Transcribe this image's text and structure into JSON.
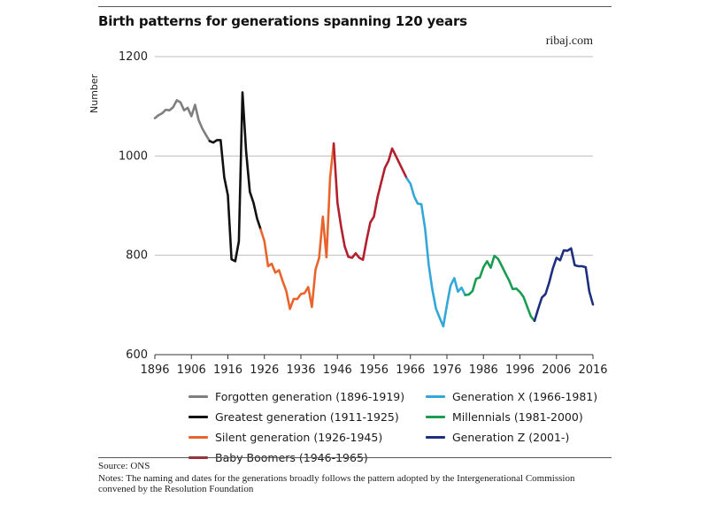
{
  "title": "Birth patterns for generations spanning 120 years",
  "site": "ribaj.com",
  "source": "Source: ONS",
  "notes": "Notes: The naming and dates for the generations broadly follows the pattern adopted by the Intergenerational Commission convened by the Resolution Foundation",
  "chart_data": {
    "type": "line",
    "ylabel": "Number",
    "xlabel": "",
    "xlim": [
      1896,
      2016
    ],
    "ylim": [
      600,
      1200
    ],
    "x_ticks": [
      1896,
      1906,
      1916,
      1926,
      1936,
      1946,
      1956,
      1966,
      1976,
      1986,
      1996,
      2006,
      2016
    ],
    "y_ticks": [
      600,
      800,
      1000,
      1200
    ],
    "grid": "horizontal",
    "legend_position": "bottom",
    "series": [
      {
        "name": "Forgotten generation (1896-1919)",
        "color": "#7f7f7f",
        "x": [
          1896,
          1897,
          1898,
          1899,
          1900,
          1901,
          1902,
          1903,
          1904,
          1905,
          1906,
          1907,
          1908,
          1909,
          1910,
          1911
        ],
        "y": [
          1076,
          1082,
          1086,
          1093,
          1092,
          1098,
          1112,
          1108,
          1092,
          1097,
          1080,
          1103,
          1072,
          1055,
          1042,
          1030
        ]
      },
      {
        "name": "Greatest generation (1911-1925)",
        "color": "#111111",
        "x": [
          1911,
          1912,
          1913,
          1914,
          1915,
          1916,
          1917,
          1918,
          1919,
          1920,
          1921,
          1922,
          1923,
          1924,
          1925
        ],
        "y": [
          1030,
          1027,
          1032,
          1032,
          957,
          921,
          792,
          788,
          828,
          1128,
          1009,
          928,
          906,
          874,
          852
        ]
      },
      {
        "name": "Silent generation (1926-1945)",
        "color": "#e8642c",
        "x": [
          1925,
          1926,
          1927,
          1928,
          1929,
          1930,
          1931,
          1932,
          1933,
          1934,
          1935,
          1936,
          1937,
          1938,
          1939,
          1940,
          1941,
          1942,
          1943,
          1944,
          1945
        ],
        "y": [
          852,
          828,
          778,
          783,
          765,
          770,
          748,
          728,
          692,
          712,
          712,
          722,
          724,
          736,
          696,
          771,
          795,
          878,
          796,
          956,
          1025
        ]
      },
      {
        "name": "Baby Boomers (1946-1965)",
        "color": "#b0202e",
        "x": [
          1945,
          1946,
          1947,
          1948,
          1949,
          1950,
          1951,
          1952,
          1953,
          1954,
          1955,
          1956,
          1957,
          1958,
          1959,
          1960,
          1961,
          1962,
          1963,
          1964,
          1965
        ],
        "y": [
          1025,
          906,
          858,
          818,
          797,
          795,
          804,
          795,
          791,
          831,
          866,
          878,
          917,
          947,
          976,
          990,
          1015,
          1000,
          985,
          970,
          955
        ]
      },
      {
        "name": "Generation X (1966-1981)",
        "color": "#34a7d9",
        "x": [
          1965,
          1966,
          1967,
          1968,
          1969,
          1970,
          1971,
          1972,
          1973,
          1974,
          1975,
          1976,
          1977,
          1978,
          1979,
          1980,
          1981
        ],
        "y": [
          955,
          944,
          919,
          904,
          903,
          854,
          781,
          731,
          693,
          674,
          657,
          700,
          739,
          754,
          727,
          735,
          720
        ]
      },
      {
        "name": "Millennials (1981-2000)",
        "color": "#1c9c50",
        "x": [
          1981,
          1982,
          1983,
          1984,
          1985,
          1986,
          1987,
          1988,
          1989,
          1990,
          1991,
          1992,
          1993,
          1994,
          1995,
          1996,
          1997,
          1998,
          1999,
          2000
        ],
        "y": [
          720,
          721,
          728,
          753,
          755,
          776,
          788,
          775,
          799,
          793,
          779,
          764,
          750,
          732,
          733,
          726,
          716,
          696,
          677,
          668
        ]
      },
      {
        "name": "Generation Z (2001-)",
        "color": "#1d2f7f",
        "x": [
          2000,
          2001,
          2002,
          2003,
          2004,
          2005,
          2006,
          2007,
          2008,
          2009,
          2010,
          2011,
          2012,
          2013,
          2014,
          2015,
          2016
        ],
        "y": [
          668,
          692,
          715,
          722,
          745,
          773,
          795,
          790,
          810,
          809,
          814,
          780,
          778,
          778,
          776,
          727,
          701
        ]
      }
    ]
  }
}
